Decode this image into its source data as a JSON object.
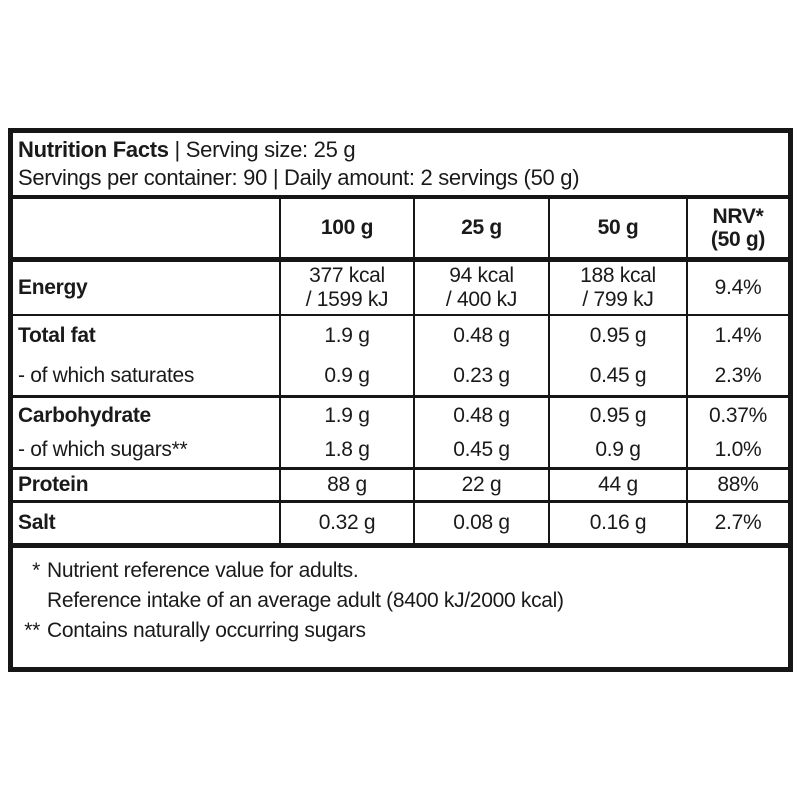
{
  "header": {
    "title": "Nutrition Facts",
    "sep": "|",
    "serving_size": "Serving size: 25 g",
    "line2": "Servings per container: 90 | Daily amount: 2 servings (50 g)"
  },
  "table": {
    "columns": {
      "c0": "",
      "c1": "100 g",
      "c2": "25 g",
      "c3": "50 g",
      "c4_line1": "NRV*",
      "c4_line2": "(50 g)"
    },
    "rows": [
      {
        "label": "Energy",
        "v1a": "377 kcal",
        "v1b": "/ 1599 kJ",
        "v2a": "94 kcal",
        "v2b": "/ 400 kJ",
        "v3a": "188 kcal",
        "v3b": "/ 799 kJ",
        "nrv": "9.4%"
      },
      {
        "label": "Total fat",
        "v1": "1.9 g",
        "v2": "0.48 g",
        "v3": "0.95 g",
        "nrv": "1.4%"
      },
      {
        "label": "- of which saturates",
        "v1": "0.9 g",
        "v2": "0.23 g",
        "v3": "0.45 g",
        "nrv": "2.3%"
      },
      {
        "label": "Carbohydrate",
        "v1": "1.9 g",
        "v2": "0.48 g",
        "v3": "0.95 g",
        "nrv": "0.37%"
      },
      {
        "label": "- of which sugars**",
        "v1": "1.8 g",
        "v2": "0.45 g",
        "v3": "0.9 g",
        "nrv": "1.0%"
      },
      {
        "label": "Protein",
        "v1": "88 g",
        "v2": "22 g",
        "v3": "44 g",
        "nrv": "88%"
      },
      {
        "label": "Salt",
        "v1": "0.32 g",
        "v2": "0.08 g",
        "v3": "0.16 g",
        "nrv": "2.7%"
      }
    ],
    "footnotes": [
      {
        "marker": "*",
        "text": "Nutrient reference value for adults."
      },
      {
        "marker": "",
        "text": "Reference intake of an average adult (8400 kJ/2000 kcal)"
      },
      {
        "marker": "**",
        "text": "Contains naturally occurring sugars"
      }
    ]
  }
}
